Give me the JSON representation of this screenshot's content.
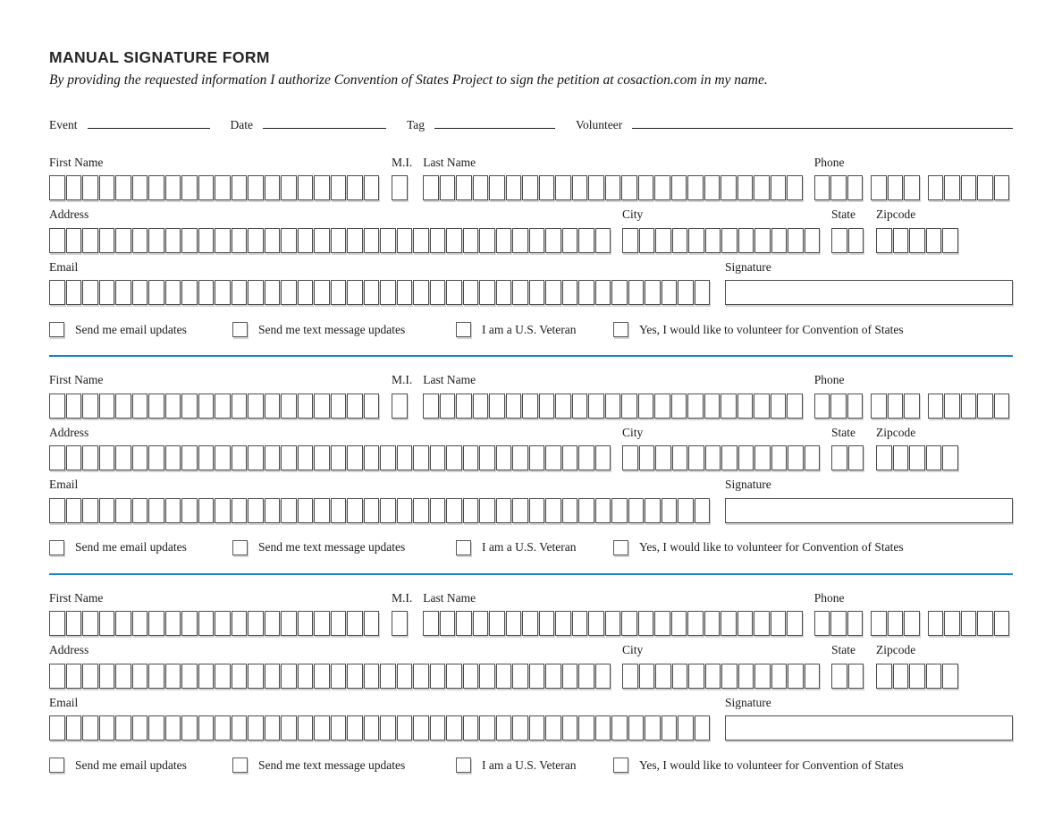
{
  "page": {
    "title": "MANUAL SIGNATURE FORM",
    "subtitle": "By providing the requested information I authorize Convention of States Project to sign the petition at cosaction.com in my name."
  },
  "meta_fields": [
    {
      "label": "Event"
    },
    {
      "label": "Date"
    },
    {
      "label": "Tag"
    },
    {
      "label": "Volunteer"
    }
  ],
  "blocks_count": 3,
  "entry_block": {
    "fields": {
      "first_name": {
        "label": "First Name",
        "cells": 20
      },
      "middle_initial": {
        "label": "M.I.",
        "cells": 1
      },
      "last_name": {
        "label": "Last Name",
        "cells": 23
      },
      "phone": {
        "label": "Phone",
        "groups": [
          3,
          3,
          5
        ]
      },
      "address": {
        "label": "Address",
        "cells": 34
      },
      "city": {
        "label": "City",
        "cells": 12
      },
      "state": {
        "label": "State",
        "cells": 2
      },
      "zipcode": {
        "label": "Zipcode",
        "cells": 5
      },
      "email": {
        "label": "Email",
        "cells": 40
      },
      "signature": {
        "label": "Signature"
      }
    },
    "checkboxes": [
      {
        "label": "Send me email updates",
        "checked": false
      },
      {
        "label": "Send me text message updates",
        "checked": false
      },
      {
        "label": "I am a U.S. Veteran",
        "checked": false
      },
      {
        "label": "Yes, I would like to volunteer for Convention of States",
        "checked": false
      }
    ]
  },
  "colors": {
    "divider_blue": "#1787c8",
    "cell_border": "#4d4d4d",
    "text": "#1b1b1b"
  }
}
